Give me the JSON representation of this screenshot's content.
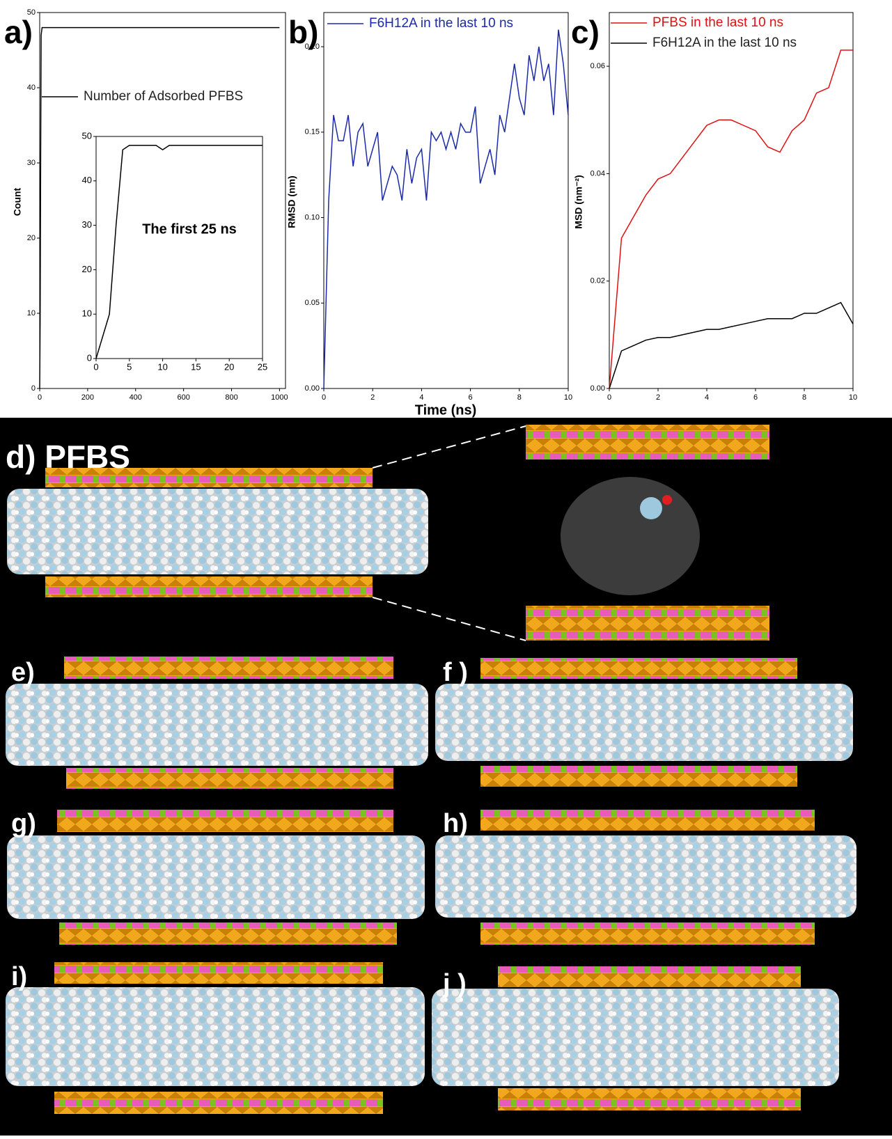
{
  "chart_data": [
    {
      "type": "line",
      "panel_label": "a)",
      "ylabel": "Count",
      "xlim": [
        0,
        1025
      ],
      "ylim": [
        0,
        50
      ],
      "xticks": [
        0,
        200,
        400,
        600,
        800,
        1000
      ],
      "yticks": [
        0,
        10,
        20,
        30,
        40,
        50
      ],
      "grid": false,
      "x": [
        0,
        2,
        4,
        6,
        10,
        25,
        100,
        200,
        300,
        400,
        500,
        600,
        700,
        800,
        900,
        1000
      ],
      "series": [
        {
          "name": "Number of Adsorbed PFBS",
          "color": "#000000",
          "values": [
            0,
            10,
            30,
            47,
            48,
            48,
            48,
            48,
            48,
            48,
            48,
            48,
            48,
            48,
            48,
            48
          ]
        }
      ]
    },
    {
      "type": "line",
      "annotation": "The first 25 ns",
      "xlim": [
        0,
        25
      ],
      "ylim": [
        0,
        50
      ],
      "xticks": [
        0,
        5,
        10,
        15,
        20,
        25
      ],
      "yticks": [
        0,
        10,
        20,
        30,
        40,
        50
      ],
      "grid": false,
      "x": [
        0,
        1,
        2,
        3,
        4,
        5,
        6,
        7,
        8,
        9,
        10,
        11,
        12,
        15,
        20,
        25
      ],
      "series": [
        {
          "name": null,
          "color": "#000000",
          "values": [
            0,
            5,
            10,
            30,
            47,
            48,
            48,
            48,
            48,
            48,
            47,
            48,
            48,
            48,
            48,
            48
          ]
        }
      ]
    },
    {
      "type": "line",
      "panel_label": "b)",
      "ylabel": "RMSD (nm)",
      "xlabel": "Time (ns)",
      "xlim": [
        0,
        10
      ],
      "ylim": [
        0,
        0.22
      ],
      "xticks": [
        0,
        2,
        4,
        6,
        8,
        10
      ],
      "yticks": [
        {
          "value": 0,
          "label": "0.00"
        },
        {
          "value": 0.05,
          "label": "0.05"
        },
        {
          "value": 0.1,
          "label": "0.10"
        },
        {
          "value": 0.15,
          "label": "0.15"
        },
        {
          "value": 0.2,
          "label": "0.20"
        }
      ],
      "grid": false,
      "x": [
        0,
        0.2,
        0.4,
        0.6,
        0.8,
        1.0,
        1.2,
        1.4,
        1.6,
        1.8,
        2.0,
        2.2,
        2.4,
        2.6,
        2.8,
        3.0,
        3.2,
        3.4,
        3.6,
        3.8,
        4.0,
        4.2,
        4.4,
        4.6,
        4.8,
        5.0,
        5.2,
        5.4,
        5.6,
        5.8,
        6.0,
        6.2,
        6.4,
        6.6,
        6.8,
        7.0,
        7.2,
        7.4,
        7.6,
        7.8,
        8.0,
        8.2,
        8.4,
        8.6,
        8.8,
        9.0,
        9.2,
        9.4,
        9.6,
        9.8,
        10.0
      ],
      "series": [
        {
          "name": "F6H12A in the last 10 ns",
          "color": "#1a2aa8",
          "values": [
            0,
            0.11,
            0.16,
            0.145,
            0.145,
            0.16,
            0.13,
            0.15,
            0.155,
            0.13,
            0.14,
            0.15,
            0.11,
            0.12,
            0.13,
            0.125,
            0.11,
            0.14,
            0.12,
            0.135,
            0.14,
            0.11,
            0.15,
            0.145,
            0.15,
            0.14,
            0.15,
            0.14,
            0.155,
            0.15,
            0.15,
            0.165,
            0.12,
            0.13,
            0.14,
            0.125,
            0.16,
            0.15,
            0.17,
            0.19,
            0.17,
            0.16,
            0.195,
            0.18,
            0.2,
            0.18,
            0.19,
            0.16,
            0.21,
            0.19,
            0.16
          ]
        }
      ]
    },
    {
      "type": "line",
      "panel_label": "c)",
      "ylabel": "MSD (nm⁻²)",
      "xlim": [
        0,
        10
      ],
      "ylim": [
        0,
        0.07
      ],
      "xticks": [
        0,
        2,
        4,
        6,
        8,
        10
      ],
      "yticks": [
        {
          "value": 0,
          "label": "0.00"
        },
        {
          "value": 0.02,
          "label": "0.02"
        },
        {
          "value": 0.04,
          "label": "0.04"
        },
        {
          "value": 0.06,
          "label": "0.06"
        }
      ],
      "grid": false,
      "x": [
        0,
        0.5,
        1,
        1.5,
        2,
        2.5,
        3,
        3.5,
        4,
        4.5,
        5,
        5.5,
        6,
        6.5,
        7,
        7.5,
        8,
        8.5,
        9,
        9.5,
        10
      ],
      "series": [
        {
          "name": "PFBS in the last 10 ns",
          "color": "#e01010",
          "values": [
            0,
            0.028,
            0.032,
            0.036,
            0.039,
            0.04,
            0.043,
            0.046,
            0.049,
            0.05,
            0.05,
            0.049,
            0.048,
            0.045,
            0.044,
            0.048,
            0.05,
            0.055,
            0.056,
            0.063,
            0.063
          ]
        },
        {
          "name": "F6H12A in the last 10 ns",
          "color": "#000000",
          "values": [
            0,
            0.007,
            0.008,
            0.009,
            0.0095,
            0.0095,
            0.01,
            0.0105,
            0.011,
            0.011,
            0.0115,
            0.012,
            0.0125,
            0.013,
            0.013,
            0.013,
            0.014,
            0.014,
            0.015,
            0.016,
            0.012
          ]
        }
      ]
    }
  ],
  "snapshots": {
    "labels": [
      "d) PFBS",
      "e)",
      "f )",
      "g)",
      "h)",
      "i)",
      "j )"
    ]
  }
}
